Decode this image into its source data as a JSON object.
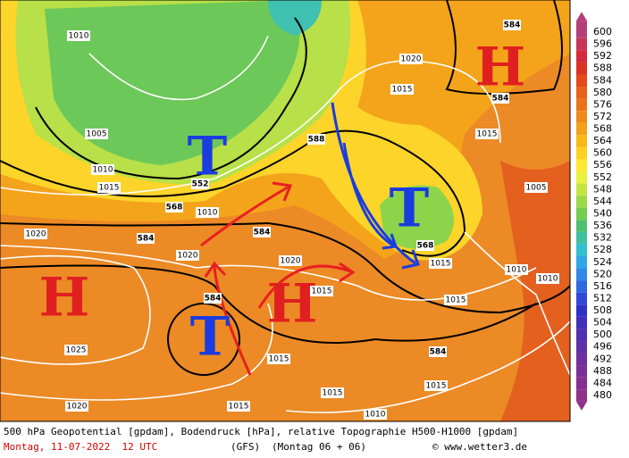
{
  "map": {
    "pressure_systems": [
      "H",
      "H",
      "H",
      "T",
      "T",
      "T"
    ],
    "contour_labels": [
      "584",
      "584",
      "584",
      "584",
      "584",
      "584",
      "568",
      "568",
      "552",
      "588"
    ],
    "isobar_labels": [
      "1010",
      "1015",
      "1020",
      "1020",
      "1025",
      "1020",
      "1015",
      "1015",
      "1010",
      "1015",
      "1015",
      "1015",
      "1020",
      "1010",
      "1010",
      "1005",
      "1015",
      "1015",
      "1020",
      "1005",
      "1010",
      "1010",
      "1015",
      "1015"
    ]
  },
  "colorbar": {
    "ticks": [
      600,
      596,
      592,
      588,
      584,
      580,
      576,
      572,
      568,
      564,
      560,
      556,
      552,
      548,
      544,
      540,
      536,
      532,
      528,
      524,
      520,
      516,
      512,
      508,
      504,
      500,
      496,
      492,
      488,
      484,
      480
    ],
    "colors": [
      "#b4407a",
      "#c8365a",
      "#d42c3c",
      "#dc3424",
      "#e44a1c",
      "#e8601a",
      "#ec7418",
      "#f08a18",
      "#f4a018",
      "#f8b818",
      "#fcd020",
      "#fce830",
      "#e8f040",
      "#c4e440",
      "#9cd848",
      "#74cc50",
      "#50c070",
      "#40c0a0",
      "#30c0d0",
      "#30a8e8",
      "#3088e8",
      "#3068e0",
      "#3048d8",
      "#3030c8",
      "#4030b8",
      "#5030b0",
      "#6030a8",
      "#7030a0",
      "#7a3098",
      "#843090",
      "#8c308a"
    ]
  },
  "footer": {
    "description": "500 hPa Geopotential [gpdam], Bodendruck [hPa], relative Topographie H500-H1000 [gpdam]",
    "date": "Montag, 11-07-2022  12 UTC",
    "model": "(GFS)",
    "run": "(Montag 06 + 06)",
    "credit": "© www.wetter3.de"
  }
}
